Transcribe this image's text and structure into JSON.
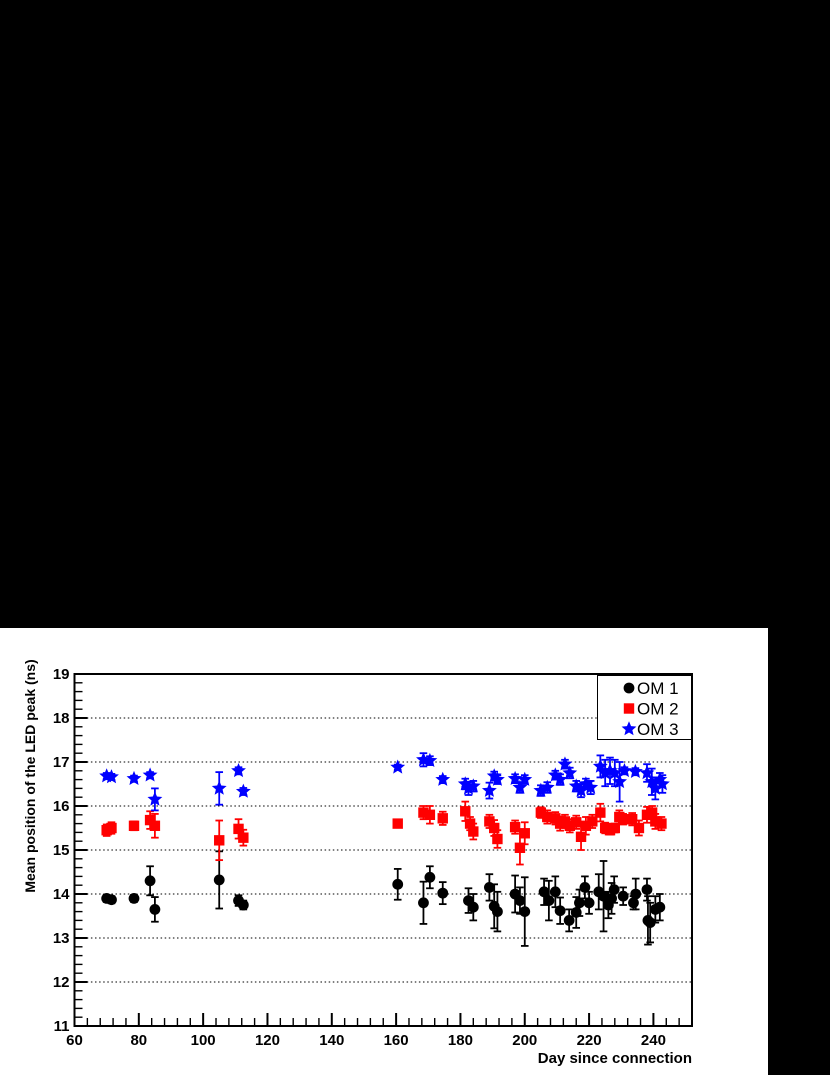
{
  "colors": {
    "background": "#000000",
    "panel": "#ffffff",
    "axis": "#000000",
    "om1": "#000000",
    "om2": "#ff0000",
    "om3": "#0000ff"
  },
  "chart_data": {
    "type": "scatter",
    "title": "",
    "xlabel": "Day since connection",
    "ylabel": "Mean position of the LED peak (ns)",
    "xlim": [
      60,
      252
    ],
    "ylim": [
      11,
      19
    ],
    "x_major_ticks": [
      60,
      80,
      100,
      120,
      140,
      160,
      180,
      200,
      220,
      240
    ],
    "x_tick_labels": [
      "60",
      "80",
      "100",
      "120",
      "140",
      "160",
      "180",
      "200",
      "220",
      "240"
    ],
    "x_minor_step": 4,
    "y_major_ticks": [
      11,
      12,
      13,
      14,
      15,
      16,
      17,
      18,
      19
    ],
    "y_tick_labels": [
      "11",
      "12",
      "13",
      "14",
      "15",
      "16",
      "17",
      "18",
      "19"
    ],
    "y_minor_step": 0.2,
    "grid": "horizontal-dotted",
    "legend_position": "top-right",
    "series": [
      {
        "name": "OM 1",
        "marker": "circle",
        "color": "#000000",
        "points": [
          [
            70,
            13.9,
            0.08
          ],
          [
            71.5,
            13.87,
            0.08
          ],
          [
            78.5,
            13.9,
            0.08
          ],
          [
            83.5,
            14.3,
            0.33
          ],
          [
            85,
            13.65,
            0.28
          ],
          [
            105,
            14.32,
            0.65
          ],
          [
            111,
            13.85,
            0.12
          ],
          [
            112.5,
            13.75,
            0.1
          ],
          [
            160.5,
            14.22,
            0.35
          ],
          [
            168.5,
            13.8,
            0.48
          ],
          [
            170.5,
            14.38,
            0.25
          ],
          [
            174.5,
            14.02,
            0.25
          ],
          [
            182.5,
            13.85,
            0.28
          ],
          [
            184,
            13.7,
            0.3
          ],
          [
            189,
            14.15,
            0.3
          ],
          [
            190.5,
            13.72,
            0.5
          ],
          [
            191.5,
            13.6,
            0.45
          ],
          [
            197,
            14.0,
            0.42
          ],
          [
            198.5,
            13.85,
            0.3
          ],
          [
            200,
            13.6,
            0.78
          ],
          [
            206,
            14.05,
            0.3
          ],
          [
            207.5,
            13.85,
            0.45
          ],
          [
            209.5,
            14.05,
            0.35
          ],
          [
            211,
            13.62,
            0.3
          ],
          [
            213.8,
            13.4,
            0.25
          ],
          [
            216,
            13.58,
            0.35
          ],
          [
            217,
            13.8,
            0.3
          ],
          [
            218.7,
            14.15,
            0.25
          ],
          [
            220,
            13.8,
            0.25
          ],
          [
            223,
            14.05,
            0.4
          ],
          [
            224.5,
            13.95,
            0.8
          ],
          [
            226,
            13.75,
            0.3
          ],
          [
            227,
            13.9,
            0.35
          ],
          [
            227.8,
            14.1,
            0.3
          ],
          [
            230.6,
            13.95,
            0.2
          ],
          [
            233.8,
            13.8,
            0.15
          ],
          [
            234.5,
            14.0,
            0.35
          ],
          [
            238,
            14.1,
            0.25
          ],
          [
            238.3,
            13.4,
            0.55
          ],
          [
            239,
            13.35,
            0.45
          ],
          [
            240.6,
            13.65,
            0.3
          ],
          [
            242,
            13.7,
            0.3
          ]
        ]
      },
      {
        "name": "OM 2",
        "marker": "square",
        "color": "#ff0000",
        "points": [
          [
            70,
            15.45,
            0.13
          ],
          [
            71.5,
            15.5,
            0.13
          ],
          [
            78.5,
            15.55,
            0.1
          ],
          [
            83.5,
            15.68,
            0.2
          ],
          [
            85,
            15.55,
            0.27
          ],
          [
            105,
            15.22,
            0.45
          ],
          [
            111,
            15.48,
            0.22
          ],
          [
            112.5,
            15.28,
            0.18
          ],
          [
            160.5,
            15.6,
            0.07
          ],
          [
            168.5,
            15.85,
            0.15
          ],
          [
            170.5,
            15.8,
            0.2
          ],
          [
            174.5,
            15.72,
            0.15
          ],
          [
            181.5,
            15.88,
            0.22
          ],
          [
            183,
            15.6,
            0.15
          ],
          [
            184,
            15.42,
            0.18
          ],
          [
            189,
            15.65,
            0.15
          ],
          [
            190.5,
            15.5,
            0.18
          ],
          [
            191.5,
            15.25,
            0.2
          ],
          [
            197,
            15.52,
            0.15
          ],
          [
            198.5,
            15.05,
            0.38
          ],
          [
            200,
            15.38,
            0.25
          ],
          [
            205,
            15.85,
            0.12
          ],
          [
            207,
            15.75,
            0.15
          ],
          [
            209.5,
            15.72,
            0.14
          ],
          [
            211,
            15.6,
            0.16
          ],
          [
            212.5,
            15.65,
            0.15
          ],
          [
            214,
            15.55,
            0.15
          ],
          [
            216,
            15.63,
            0.15
          ],
          [
            217.5,
            15.3,
            0.3
          ],
          [
            219,
            15.55,
            0.2
          ],
          [
            221,
            15.65,
            0.15
          ],
          [
            223.5,
            15.85,
            0.2
          ],
          [
            225,
            15.5,
            0.12
          ],
          [
            226.5,
            15.45,
            0.1
          ],
          [
            228,
            15.5,
            0.1
          ],
          [
            229.4,
            15.75,
            0.15
          ],
          [
            230.6,
            15.7,
            0.12
          ],
          [
            233.4,
            15.7,
            0.14
          ],
          [
            235.5,
            15.5,
            0.17
          ],
          [
            238,
            15.8,
            0.18
          ],
          [
            239.6,
            15.85,
            0.15
          ],
          [
            240.6,
            15.65,
            0.17
          ],
          [
            242.5,
            15.6,
            0.15
          ]
        ]
      },
      {
        "name": "OM 3",
        "marker": "star",
        "color": "#0000ff",
        "points": [
          [
            70,
            16.68,
            0.07
          ],
          [
            71.5,
            16.66,
            0.07
          ],
          [
            78.5,
            16.62,
            0.07
          ],
          [
            83.5,
            16.7,
            0.07
          ],
          [
            85,
            16.15,
            0.25
          ],
          [
            105,
            16.4,
            0.37
          ],
          [
            111,
            16.8,
            0.08
          ],
          [
            112.5,
            16.33,
            0.08
          ],
          [
            160.5,
            16.88,
            0.06
          ],
          [
            168.5,
            17.05,
            0.15
          ],
          [
            170.5,
            17.03,
            0.1
          ],
          [
            174.5,
            16.6,
            0.08
          ],
          [
            181.5,
            16.5,
            0.12
          ],
          [
            182.5,
            16.4,
            0.15
          ],
          [
            184,
            16.45,
            0.12
          ],
          [
            189,
            16.35,
            0.18
          ],
          [
            190.5,
            16.68,
            0.1
          ],
          [
            191.5,
            16.6,
            0.1
          ],
          [
            197,
            16.62,
            0.1
          ],
          [
            198.5,
            16.42,
            0.12
          ],
          [
            200,
            16.6,
            0.1
          ],
          [
            205,
            16.35,
            0.12
          ],
          [
            207,
            16.42,
            0.12
          ],
          [
            209.5,
            16.7,
            0.1
          ],
          [
            211,
            16.6,
            0.12
          ],
          [
            212.5,
            16.95,
            0.1
          ],
          [
            214,
            16.75,
            0.12
          ],
          [
            216,
            16.45,
            0.12
          ],
          [
            217.5,
            16.35,
            0.15
          ],
          [
            219,
            16.5,
            0.12
          ],
          [
            220.5,
            16.42,
            0.15
          ],
          [
            223.5,
            16.9,
            0.25
          ],
          [
            225,
            16.75,
            0.3
          ],
          [
            226.5,
            16.8,
            0.3
          ],
          [
            228,
            16.75,
            0.3
          ],
          [
            229.5,
            16.55,
            0.45
          ],
          [
            231,
            16.8,
            0.08
          ],
          [
            234.4,
            16.78,
            0.08
          ],
          [
            238,
            16.75,
            0.2
          ],
          [
            239.5,
            16.55,
            0.3
          ],
          [
            240.6,
            16.4,
            0.25
          ],
          [
            242,
            16.6,
            0.15
          ],
          [
            242.8,
            16.5,
            0.2
          ]
        ]
      }
    ]
  }
}
